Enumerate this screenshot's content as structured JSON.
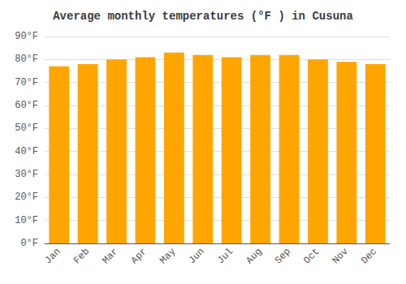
{
  "chart_data": {
    "type": "bar",
    "title": "Average monthly temperatures (°F ) in Cusuna",
    "categories": [
      "Jan",
      "Feb",
      "Mar",
      "Apr",
      "May",
      "Jun",
      "Jul",
      "Aug",
      "Sep",
      "Oct",
      "Nov",
      "Dec"
    ],
    "values": [
      77,
      78,
      80,
      81,
      83,
      82,
      81,
      82,
      82,
      80,
      79,
      78
    ],
    "color": "#FFA500",
    "ylim": [
      0,
      90
    ],
    "yticks": [
      {
        "value": 0,
        "label": "0°F"
      },
      {
        "value": 10,
        "label": "10°F"
      },
      {
        "value": 20,
        "label": "20°F"
      },
      {
        "value": 30,
        "label": "30°F"
      },
      {
        "value": 40,
        "label": "40°F"
      },
      {
        "value": 50,
        "label": "50°F"
      },
      {
        "value": 60,
        "label": "60°F"
      },
      {
        "value": 70,
        "label": "70°F"
      },
      {
        "value": 80,
        "label": "80°F"
      },
      {
        "value": 90,
        "label": "90°F"
      }
    ],
    "grid": true
  }
}
